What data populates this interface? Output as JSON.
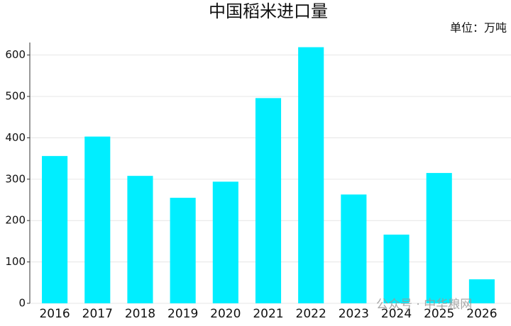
{
  "chart_data": {
    "type": "bar",
    "title": "中国稻米进口量",
    "unit": "单位：万吨",
    "watermark": "公众号 · 中华粮网",
    "categories": [
      "2016",
      "2017",
      "2018",
      "2019",
      "2020",
      "2021",
      "2022",
      "2023",
      "2024",
      "2025",
      "2026"
    ],
    "values": [
      356,
      403,
      308,
      255,
      294,
      496,
      619,
      263,
      166,
      315,
      58
    ],
    "color": "#00eeff",
    "ylim": [
      0,
      620
    ],
    "yticks": [
      0,
      100,
      200,
      300,
      400,
      500,
      600
    ],
    "grid": true
  }
}
